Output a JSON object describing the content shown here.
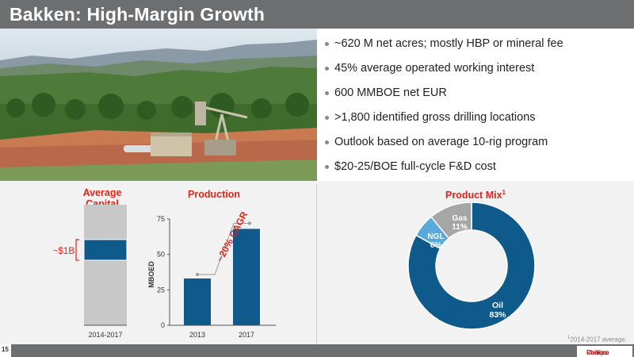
{
  "slide": {
    "title": "Bakken: High-Margin Growth",
    "page_number": "15"
  },
  "bullets": [
    "~620 M net acres; mostly HBP or mineral fee",
    "45% average operated working interest",
    "600 MMBOE net EUR",
    ">1,800 identified gross drilling locations",
    "Outlook based on average 10-rig program",
    "$20-25/BOE full-cycle F&D cost"
  ],
  "chart_data": [
    {
      "type": "bar",
      "title": "Average Capital",
      "categories": [
        "2014-2017"
      ],
      "annotation": "~$1B",
      "colors": {
        "bar": "#c8c8c8",
        "highlight": "#0e5a8a"
      }
    },
    {
      "type": "bar",
      "title": "Production",
      "ylabel": "MBOED",
      "categories": [
        "2013",
        "2017"
      ],
      "values": [
        33,
        68
      ],
      "ylim": [
        0,
        75
      ],
      "yticks": [
        "0",
        "25",
        "50",
        "75"
      ],
      "annotation": "~20% CAGR",
      "colors": {
        "bar": "#0e5a8a"
      }
    },
    {
      "type": "pie",
      "title": "Product Mix",
      "title_superscript": "1",
      "slices": [
        {
          "label": "Oil",
          "value": 83,
          "display": "83%",
          "color": "#0e5a8a"
        },
        {
          "label": "NGL",
          "value": 6,
          "display": "6%",
          "color": "#59a9db"
        },
        {
          "label": "Gas",
          "value": 11,
          "display": "11%",
          "color": "#a6a6a6"
        }
      ]
    }
  ],
  "footnote": {
    "sup": "1",
    "text": "2014-2017 average."
  },
  "logo": {
    "part1": "Conoco",
    "part2": "Phillips"
  },
  "colors": {
    "accent_red": "#e2231a",
    "brand_blue": "#0e5a8a",
    "title_bar": "#6d6e70"
  }
}
